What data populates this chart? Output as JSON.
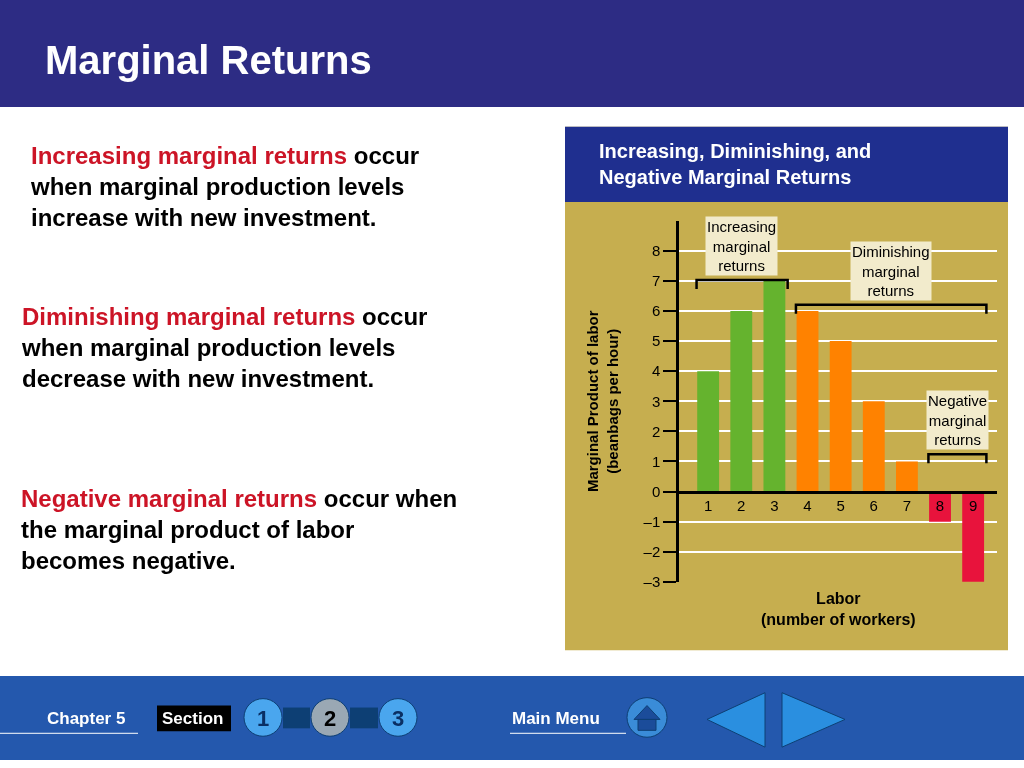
{
  "chart_data": {
    "type": "bar",
    "title": "Marginal Returns",
    "subtitle": "Increasing, Diminishing, and\nNegative Marginal Returns",
    "xlabel": "Labor\n(number of workers)",
    "ylabel": "Marginal Product of labor\n(beanbags per hour)",
    "categories": [
      "1",
      "2",
      "3",
      "4",
      "5",
      "6",
      "7",
      "8",
      "9"
    ],
    "values": [
      4,
      6,
      7,
      6,
      5,
      3,
      1,
      -1,
      -3
    ],
    "colors": [
      "#65b32e",
      "#65b32e",
      "#65b32e",
      "#ff8200",
      "#ff8200",
      "#ff8200",
      "#ff8200",
      "#e8133c",
      "#e8133c"
    ],
    "ylim": [
      -3,
      9
    ],
    "yticks": [
      {
        "value": -3,
        "label": "–3"
      },
      {
        "value": -2,
        "label": "–2"
      },
      {
        "value": -1,
        "label": "–1"
      },
      0,
      1,
      2,
      3,
      4,
      5,
      6,
      7,
      8
    ],
    "grid": "y",
    "annotations": [
      "Increasing marginal returns",
      "occur\nwhen marginal production levels\nincrease with new investment.",
      "Diminishing marginal returns",
      "occur\nwhen marginal production levels\ndecrease with new investment.",
      "Negative marginal returns",
      "occur when\nthe marginal product of labor\nbecomes negative.",
      "Increasing\nmarginal\nreturns",
      "Diminishing\nmarginal\nreturns",
      "Negative\nmarginal\nreturns",
      "Chapter 5",
      "Section",
      "1",
      "2",
      "3",
      "Main Menu"
    ]
  }
}
